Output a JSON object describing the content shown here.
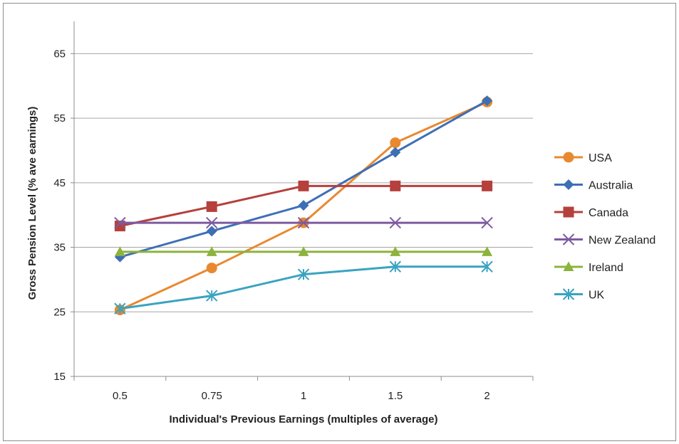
{
  "chart_data": {
    "type": "line",
    "title": "",
    "xlabel": "Individual's Previous Earnings (multiples of average)",
    "ylabel": "Gross Pension Level (%  ave earnings)",
    "categories": [
      "0.5",
      "0.75",
      "1",
      "1.5",
      "2"
    ],
    "yticks": [
      15,
      25,
      35,
      45,
      55,
      65
    ],
    "ylim": [
      15,
      70
    ],
    "grid": "horizontal",
    "legend": "right",
    "series": [
      {
        "name": "USA",
        "color": "#e8892f",
        "marker": "circle",
        "values": [
          25.3,
          31.8,
          38.8,
          51.2,
          57.5
        ]
      },
      {
        "name": "Australia",
        "color": "#3d6fb5",
        "marker": "diamond",
        "values": [
          33.5,
          37.5,
          41.5,
          49.7,
          57.7
        ]
      },
      {
        "name": "Canada",
        "color": "#b5403c",
        "marker": "square",
        "values": [
          38.3,
          41.3,
          44.5,
          44.5,
          44.5
        ]
      },
      {
        "name": "New Zealand",
        "color": "#7d5aa0",
        "marker": "x",
        "values": [
          38.8,
          38.8,
          38.8,
          38.8,
          38.8
        ]
      },
      {
        "name": "Ireland",
        "color": "#8cb33d",
        "marker": "triangle",
        "values": [
          34.3,
          34.3,
          34.3,
          34.3,
          34.3
        ]
      },
      {
        "name": "UK",
        "color": "#3aa3c0",
        "marker": "asterisk",
        "values": [
          25.5,
          27.5,
          30.8,
          32.0,
          32.0
        ]
      }
    ]
  }
}
